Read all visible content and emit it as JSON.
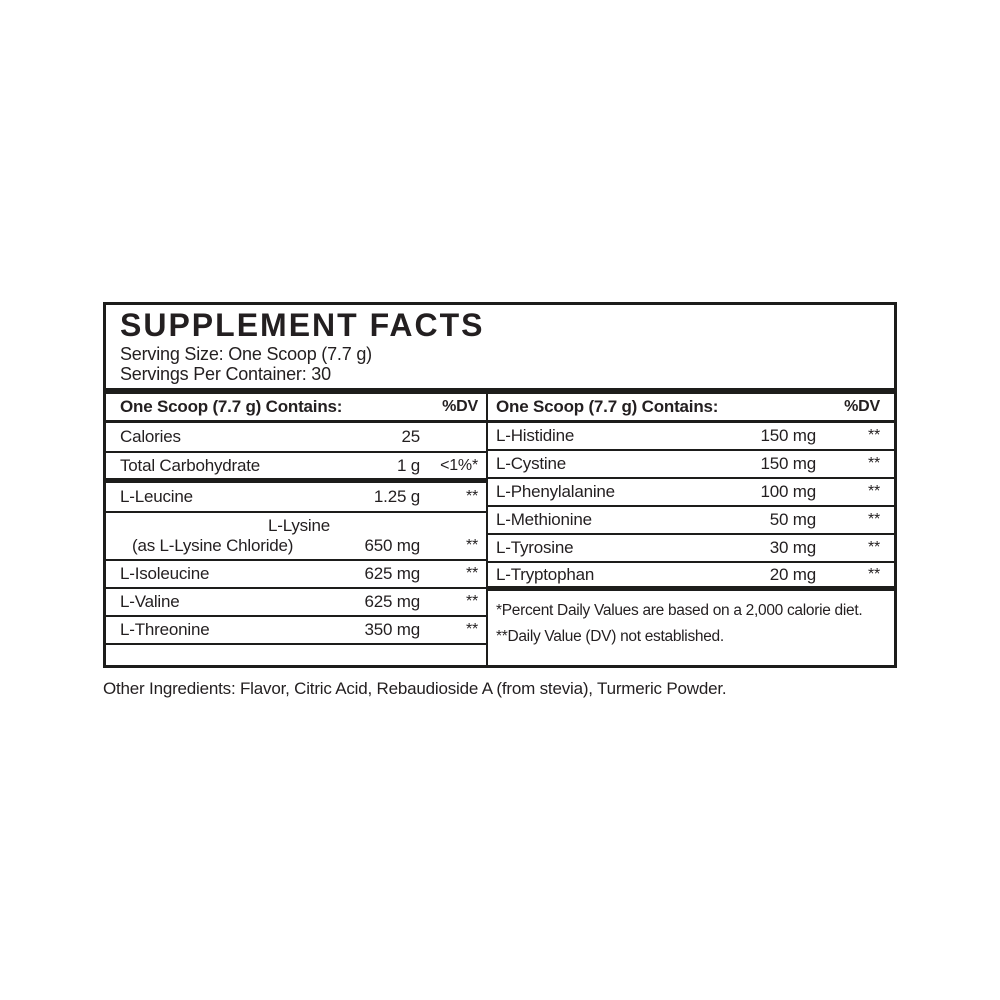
{
  "colors": {
    "text": "#231f20",
    "rule": "#1d1d1b",
    "background": "#ffffff"
  },
  "panel": {
    "title": "SUPPLEMENT FACTS",
    "serving_size": "Serving Size: One Scoop (7.7 g)",
    "servings_per_container": "Servings Per Container: 30",
    "left_table": {
      "header": {
        "label": "One Scoop (7.7 g) Contains:",
        "dv": "%DV"
      },
      "rows": [
        {
          "name": "Calories",
          "amount": "25",
          "dv": ""
        },
        {
          "name": "Total Carbohydrate",
          "amount": "1 g",
          "dv": "<1%*"
        },
        {
          "name": "L-Leucine",
          "amount": "1.25 g",
          "dv": "**"
        },
        {
          "name": "L-Lysine",
          "sub": "(as L-Lysine Chloride)",
          "amount": "650 mg",
          "dv": "**"
        },
        {
          "name": "L-Isoleucine",
          "amount": "625 mg",
          "dv": "**"
        },
        {
          "name": "L-Valine",
          "amount": "625 mg",
          "dv": "**"
        },
        {
          "name": "L-Threonine",
          "amount": "350 mg",
          "dv": "**"
        }
      ]
    },
    "right_table": {
      "header": {
        "label": "One Scoop (7.7 g) Contains:",
        "dv": "%DV"
      },
      "rows": [
        {
          "name": "L-Histidine",
          "amount": "150 mg",
          "dv": "**"
        },
        {
          "name": "L-Cystine",
          "amount": "150 mg",
          "dv": "**"
        },
        {
          "name": "L-Phenylalanine",
          "amount": "100 mg",
          "dv": "**"
        },
        {
          "name": "L-Methionine",
          "amount": "50 mg",
          "dv": "**"
        },
        {
          "name": "L-Tyrosine",
          "amount": "30 mg",
          "dv": "**"
        },
        {
          "name": "L-Tryptophan",
          "amount": "20 mg",
          "dv": "**"
        }
      ],
      "footnotes": [
        "*Percent Daily Values are based on a 2,000 calorie diet.",
        "**Daily Value (DV) not established."
      ]
    },
    "other_ingredients": "Other Ingredients: Flavor, Citric Acid, Rebaudioside A (from stevia), Turmeric Powder."
  }
}
